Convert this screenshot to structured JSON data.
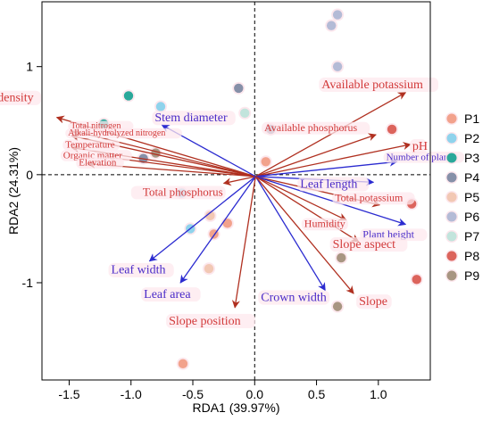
{
  "chart_data": {
    "type": "scatter",
    "subtype": "rda-biplot",
    "xlabel": "RDA1  (39.97%)",
    "ylabel": "RDA2  (24.31%)",
    "xlim": [
      -1.72,
      1.42
    ],
    "ylim": [
      -1.9,
      1.6
    ],
    "xticks": [
      -1.5,
      -1.0,
      -0.5,
      0.0,
      0.5,
      1.0
    ],
    "xtick_labels": [
      "-1.5",
      "-1.0",
      "-0.5",
      "0.0",
      "0.5",
      "1.0"
    ],
    "yticks": [
      -1,
      0,
      1
    ],
    "ytick_labels": [
      "-1",
      "0",
      "1"
    ],
    "zero_lines": true,
    "grid": false,
    "legend_position": "right",
    "series": [
      {
        "name": "P1",
        "color": "#f2a28c",
        "points": [
          [
            -0.58,
            -1.75
          ],
          [
            0.09,
            0.12
          ],
          [
            -0.22,
            -0.45
          ],
          [
            -0.33,
            -0.55
          ]
        ]
      },
      {
        "name": "P2",
        "color": "#8fd3ec",
        "points": [
          [
            -0.76,
            0.63
          ],
          [
            -0.59,
            -0.17
          ],
          [
            -0.52,
            -0.5
          ]
        ]
      },
      {
        "name": "P3",
        "color": "#2aa89a",
        "points": [
          [
            -1.02,
            0.73
          ],
          [
            -1.22,
            0.47
          ]
        ]
      },
      {
        "name": "P4",
        "color": "#8690a8",
        "points": [
          [
            -0.9,
            0.15
          ],
          [
            -0.13,
            0.8
          ],
          [
            0.13,
            0.42
          ]
        ]
      },
      {
        "name": "P5",
        "color": "#f2c8b4",
        "points": [
          [
            -0.36,
            -0.38
          ],
          [
            -0.37,
            -0.87
          ]
        ]
      },
      {
        "name": "P6",
        "color": "#b4bbd6",
        "points": [
          [
            0.62,
            1.38
          ],
          [
            0.67,
            1.48
          ],
          [
            0.67,
            1.0
          ]
        ]
      },
      {
        "name": "P7",
        "color": "#c2e4dc",
        "points": [
          [
            -0.08,
            0.57
          ]
        ]
      },
      {
        "name": "P8",
        "color": "#dc645c",
        "points": [
          [
            1.11,
            0.42
          ],
          [
            1.27,
            -0.27
          ],
          [
            1.31,
            -0.97
          ]
        ]
      },
      {
        "name": "P9",
        "color": "#a89682",
        "points": [
          [
            -0.8,
            0.2
          ],
          [
            0.7,
            -0.77
          ],
          [
            0.67,
            -1.22
          ]
        ]
      }
    ],
    "vectors": [
      {
        "label": "Crown density",
        "x": -1.6,
        "y": 0.53,
        "color": "#b03020",
        "label_color": "#d23a3a",
        "size": 14
      },
      {
        "label": "Total nitrogen",
        "x": -1.48,
        "y": 0.41,
        "color": "#b03020",
        "label_color": "#d23a3a",
        "size": 10
      },
      {
        "label": "Alkali-hydrolyzed nitrogen",
        "x": -1.48,
        "y": 0.36,
        "color": "#b03020",
        "label_color": "#d23a3a",
        "size": 10
      },
      {
        "label": "Temperature",
        "x": -1.48,
        "y": 0.25,
        "color": "#b03020",
        "label_color": "#d23a3a",
        "size": 11
      },
      {
        "label": "Organic matter",
        "x": -1.18,
        "y": 0.16,
        "color": "#b03020",
        "label_color": "#d23a3a",
        "size": 11
      },
      {
        "label": "Elevation",
        "x": -1.35,
        "y": 0.1,
        "color": "#b03020",
        "label_color": "#d23a3a",
        "size": 11
      },
      {
        "label": "Stem diameter",
        "x": -0.75,
        "y": 0.46,
        "color": "#2b2bd0",
        "label_color": "#4a2bc8",
        "size": 14
      },
      {
        "label": "Total phosphorus",
        "x": -0.25,
        "y": -0.08,
        "color": "#b03020",
        "label_color": "#d23a3a",
        "size": 13
      },
      {
        "label": "Available potassium",
        "x": 1.22,
        "y": 0.76,
        "color": "#b03020",
        "label_color": "#d23a3a",
        "size": 14
      },
      {
        "label": "Available phosphorus",
        "x": 0.98,
        "y": 0.37,
        "color": "#b03020",
        "label_color": "#d23a3a",
        "size": 12
      },
      {
        "label": "pH",
        "x": 1.26,
        "y": 0.28,
        "color": "#b03020",
        "label_color": "#d23a3a",
        "size": 14
      },
      {
        "label": "Number of plants",
        "x": 1.15,
        "y": 0.12,
        "color": "#2b2bd0",
        "label_color": "#4a2bc8",
        "size": 11
      },
      {
        "label": "Leaf length",
        "x": 0.96,
        "y": -0.07,
        "color": "#2b2bd0",
        "label_color": "#4a2bc8",
        "size": 14
      },
      {
        "label": "Total potassium",
        "x": 1.01,
        "y": -0.28,
        "color": "#b03020",
        "label_color": "#d23a3a",
        "size": 12
      },
      {
        "label": "Humidity",
        "x": 0.74,
        "y": -0.42,
        "color": "#b03020",
        "label_color": "#d23a3a",
        "size": 12
      },
      {
        "label": "Plant height",
        "x": 1.22,
        "y": -0.46,
        "color": "#2b2bd0",
        "label_color": "#4a2bc8",
        "size": 12
      },
      {
        "label": "Slope aspect",
        "x": 0.84,
        "y": -0.62,
        "color": "#b03020",
        "label_color": "#d23a3a",
        "size": 14
      },
      {
        "label": "Leaf width",
        "x": -0.85,
        "y": -0.8,
        "color": "#2b2bd0",
        "label_color": "#4a2bc8",
        "size": 14
      },
      {
        "label": "Leaf area",
        "x": -0.6,
        "y": -1.0,
        "color": "#2b2bd0",
        "label_color": "#4a2bc8",
        "size": 14
      },
      {
        "label": "Slope position",
        "x": -0.16,
        "y": -1.23,
        "color": "#b03020",
        "label_color": "#d23a3a",
        "size": 14
      },
      {
        "label": "Crown width",
        "x": 0.57,
        "y": -1.07,
        "color": "#2b2bd0",
        "label_color": "#4a2bc8",
        "size": 14
      },
      {
        "label": "Slope",
        "x": 0.8,
        "y": -1.1,
        "color": "#b03020",
        "label_color": "#d23a3a",
        "size": 14
      }
    ]
  }
}
